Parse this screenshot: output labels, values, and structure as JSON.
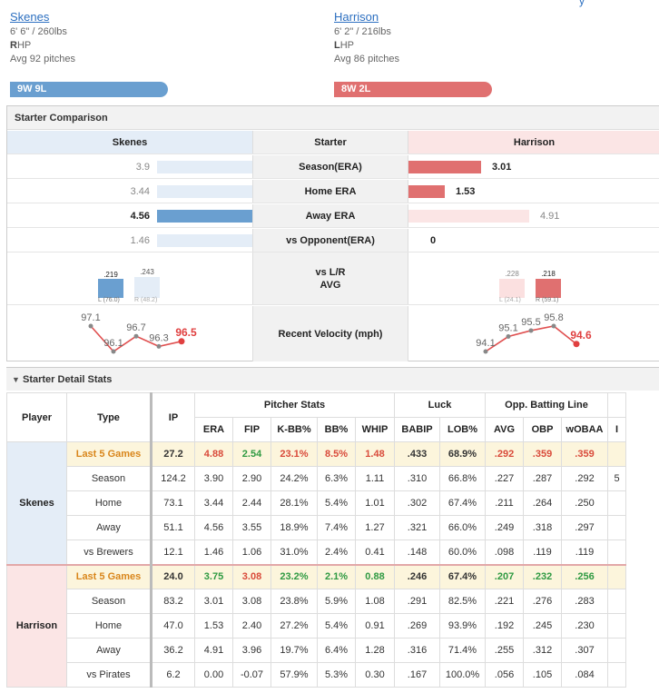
{
  "pitchers": {
    "home": {
      "name": "Skenes",
      "size": "6' 6\" / 260lbs",
      "hand_letter": "R",
      "hand_rest": "HP",
      "avg": "Avg 92 pitches",
      "record": "9W 9L"
    },
    "away": {
      "name": "Harrison",
      "size": "6' 2\" / 216lbs",
      "hand_letter": "L",
      "hand_rest": "HP",
      "avg": "Avg 86 pitches",
      "record": "8W 2L"
    }
  },
  "top_link": "y",
  "comparison": {
    "title": "Starter Comparison",
    "header": {
      "home": "Skenes",
      "mid": "Starter",
      "away": "Harrison"
    },
    "rows": [
      {
        "label": "Season(ERA)",
        "home": "3.9",
        "away": "3.01",
        "home_frac": 0.0,
        "away_frac": 1.0,
        "winner": "away"
      },
      {
        "label": "Home ERA",
        "home": "3.44",
        "away": "1.53",
        "home_frac": 0.0,
        "away_frac": 0.5,
        "winner": "away"
      },
      {
        "label": "Away ERA",
        "home": "4.56",
        "away": "4.91",
        "home_frac": 1.0,
        "away_frac": 1.0,
        "winner": "home"
      },
      {
        "label": "vs Opponent(ERA)",
        "home": "1.46",
        "away": "0",
        "home_frac": 0.0,
        "away_frac": 0.0,
        "winner": "away"
      }
    ],
    "avg_row": {
      "label": "vs L/R\nAVG",
      "home": {
        "l": ".219",
        "r": ".243",
        "l_lab": "L (76.0)",
        "r_lab": "R (48.2)"
      },
      "away": {
        "l": ".228",
        "r": ".218",
        "l_lab": "L (24.1)",
        "r_lab": "R (59.1)"
      }
    },
    "velocity": {
      "label": "Recent Velocity (mph)",
      "home": [
        "97.1",
        "96.1",
        "96.7",
        "96.3",
        "96.5"
      ],
      "away": [
        "94.1",
        "95.1",
        "95.5",
        "95.8",
        "94.6"
      ]
    }
  },
  "detail": {
    "title": "Starter Detail Stats",
    "headers": {
      "player": "Player",
      "type": "Type",
      "ip": "IP",
      "group_pitcher": "Pitcher Stats",
      "group_luck": "Luck",
      "group_opp": "Opp. Batting Line",
      "cols": [
        "ERA",
        "FIP",
        "K-BB%",
        "BB%",
        "WHIP",
        "BABIP",
        "LOB%",
        "AVG",
        "OBP",
        "wOBAA",
        "I"
      ]
    },
    "groups": [
      {
        "player": "Skenes",
        "side": "home",
        "rows": [
          {
            "type": "Last 5 Games",
            "vals": [
              "27.2",
              "4.88",
              "2.54",
              "23.1%",
              "8.5%",
              "1.48",
              ".433",
              "68.9%",
              ".292",
              ".359",
              ".359",
              ""
            ],
            "colors": [
              "",
              "red",
              "green",
              "red",
              "red",
              "red",
              "",
              "",
              "red",
              "red",
              "red",
              ""
            ]
          },
          {
            "type": "Season",
            "vals": [
              "124.2",
              "3.90",
              "2.90",
              "24.2%",
              "6.3%",
              "1.11",
              ".310",
              "66.8%",
              ".227",
              ".287",
              ".292",
              "5"
            ]
          },
          {
            "type": "Home",
            "vals": [
              "73.1",
              "3.44",
              "2.44",
              "28.1%",
              "5.4%",
              "1.01",
              ".302",
              "67.4%",
              ".211",
              ".264",
              ".250",
              ""
            ]
          },
          {
            "type": "Away",
            "vals": [
              "51.1",
              "4.56",
              "3.55",
              "18.9%",
              "7.4%",
              "1.27",
              ".321",
              "66.0%",
              ".249",
              ".318",
              ".297",
              ""
            ]
          },
          {
            "type": "vs Brewers",
            "vals": [
              "12.1",
              "1.46",
              "1.06",
              "31.0%",
              "2.4%",
              "0.41",
              ".148",
              "60.0%",
              ".098",
              ".119",
              ".119",
              ""
            ]
          }
        ]
      },
      {
        "player": "Harrison",
        "side": "away",
        "rows": [
          {
            "type": "Last 5 Games",
            "vals": [
              "24.0",
              "3.75",
              "3.08",
              "23.2%",
              "2.1%",
              "0.88",
              ".246",
              "67.4%",
              ".207",
              ".232",
              ".256",
              ""
            ],
            "colors": [
              "",
              "green",
              "red",
              "green",
              "green",
              "green",
              "",
              "",
              "green",
              "green",
              "green",
              ""
            ]
          },
          {
            "type": "Season",
            "vals": [
              "83.2",
              "3.01",
              "3.08",
              "23.8%",
              "5.9%",
              "1.08",
              ".291",
              "82.5%",
              ".221",
              ".276",
              ".283",
              ""
            ]
          },
          {
            "type": "Home",
            "vals": [
              "47.0",
              "1.53",
              "2.40",
              "27.2%",
              "5.4%",
              "0.91",
              ".269",
              "93.9%",
              ".192",
              ".245",
              ".230",
              ""
            ]
          },
          {
            "type": "Away",
            "vals": [
              "36.2",
              "4.91",
              "3.96",
              "19.7%",
              "6.4%",
              "1.28",
              ".316",
              "71.4%",
              ".255",
              ".312",
              ".307",
              ""
            ]
          },
          {
            "type": "vs Pirates",
            "vals": [
              "6.2",
              "0.00",
              "-0.07",
              "57.9%",
              "5.3%",
              "0.30",
              ".167",
              "100.0%",
              ".056",
              ".105",
              ".084",
              ""
            ]
          }
        ]
      }
    ]
  }
}
